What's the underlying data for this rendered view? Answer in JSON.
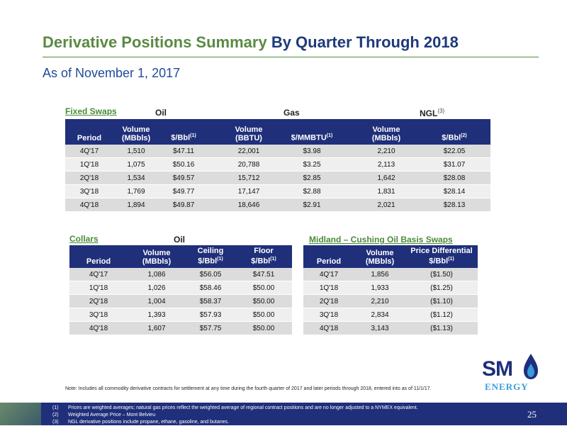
{
  "title": {
    "part1": "Derivative Positions Summary",
    "part2": "By Quarter Through 2018"
  },
  "subtitle": "As of November 1, 2017",
  "fixed_swaps": {
    "label": "Fixed Swaps",
    "groups": {
      "oil": "Oil",
      "gas": "Gas",
      "ngl": "NGL",
      "ngl_sup": "(3)"
    },
    "headers": {
      "period": "Period",
      "oil_volume": "Volume",
      "oil_volume2": "(MBbls)",
      "oil_price": "$/Bbl",
      "oil_price_sup": "(1)",
      "gas_volume": "Volume",
      "gas_volume2": "(BBTU)",
      "gas_price": "$/MMBTU",
      "gas_price_sup": "(1)",
      "ngl_volume": "Volume",
      "ngl_volume2": "(MBbls)",
      "ngl_price": "$/Bbl",
      "ngl_price_sup": "(2)"
    },
    "rows": [
      {
        "period": "4Q'17",
        "oil_vol": "1,510",
        "oil_price": "$47.11",
        "gas_vol": "22,001",
        "gas_price": "$3.98",
        "ngl_vol": "2,210",
        "ngl_price": "$22.05"
      },
      {
        "period": "1Q'18",
        "oil_vol": "1,075",
        "oil_price": "$50.16",
        "gas_vol": "20,788",
        "gas_price": "$3.25",
        "ngl_vol": "2,113",
        "ngl_price": "$31.07"
      },
      {
        "period": "2Q'18",
        "oil_vol": "1,534",
        "oil_price": "$49.57",
        "gas_vol": "15,712",
        "gas_price": "$2.85",
        "ngl_vol": "1,642",
        "ngl_price": "$28.08"
      },
      {
        "period": "3Q'18",
        "oil_vol": "1,769",
        "oil_price": "$49.77",
        "gas_vol": "17,147",
        "gas_price": "$2.88",
        "ngl_vol": "1,831",
        "ngl_price": "$28.14"
      },
      {
        "period": "4Q'18",
        "oil_vol": "1,894",
        "oil_price": "$49.87",
        "gas_vol": "18,646",
        "gas_price": "$2.91",
        "ngl_vol": "2,021",
        "ngl_price": "$28.13"
      }
    ]
  },
  "collars": {
    "label": "Collars",
    "group": "Oil",
    "headers": {
      "period": "Period",
      "volume": "Volume",
      "volume2": "(MBbls)",
      "ceiling": "Ceiling",
      "ceiling2": "$/Bbl",
      "ceiling_sup": "(1)",
      "floor": "Floor",
      "floor2": "$/Bbl",
      "floor_sup": "(1)"
    },
    "rows": [
      {
        "period": "4Q'17",
        "volume": "1,086",
        "ceiling": "$56.05",
        "floor": "$47.51"
      },
      {
        "period": "1Q'18",
        "volume": "1,026",
        "ceiling": "$58.46",
        "floor": "$50.00"
      },
      {
        "period": "2Q'18",
        "volume": "1,004",
        "ceiling": "$58.37",
        "floor": "$50.00"
      },
      {
        "period": "3Q'18",
        "volume": "1,393",
        "ceiling": "$57.93",
        "floor": "$50.00"
      },
      {
        "period": "4Q'18",
        "volume": "1,607",
        "ceiling": "$57.75",
        "floor": "$50.00"
      }
    ]
  },
  "basis_swaps": {
    "label": "Midland – Cushing Oil Basis Swaps",
    "headers": {
      "period": "Period",
      "volume": "Volume",
      "volume2": "(MBbls)",
      "diff": "Price Differential",
      "diff2": "$/Bbl",
      "diff_sup": "(1)"
    },
    "rows": [
      {
        "period": "4Q'17",
        "volume": "1,856",
        "diff": "($1.50)"
      },
      {
        "period": "1Q'18",
        "volume": "1,933",
        "diff": "($1.25)"
      },
      {
        "period": "2Q'18",
        "volume": "2,210",
        "diff": "($1.10)"
      },
      {
        "period": "3Q'18",
        "volume": "2,834",
        "diff": "($1.12)"
      },
      {
        "period": "4Q'18",
        "volume": "3,143",
        "diff": "($1.13)"
      }
    ]
  },
  "logo": {
    "sm": "SM",
    "energy": "ENERGY"
  },
  "note": "Note: Includes all commodity derivative contracts for settlement at any time during the fourth quarter of 2017 and later periods through 2018, entered into as of 11/1/17.",
  "footnotes": [
    {
      "num": "(1)",
      "text": "Prices are weighted averages; natural gas prices reflect the weighted average of regional contract positions and are no longer adjusted to a NYMEX equivalent."
    },
    {
      "num": "(2)",
      "text": "Weighted Average Price – Mont Belvieu"
    },
    {
      "num": "(3)",
      "text": "NGL derivative positions include propane, ethane, gasoline, and butanes."
    }
  ],
  "page_number": "25",
  "colors": {
    "green": "#5a8a44",
    "navy": "#1f2f7a",
    "blue": "#1f4a9a",
    "accent_blue": "#3a9adb"
  }
}
